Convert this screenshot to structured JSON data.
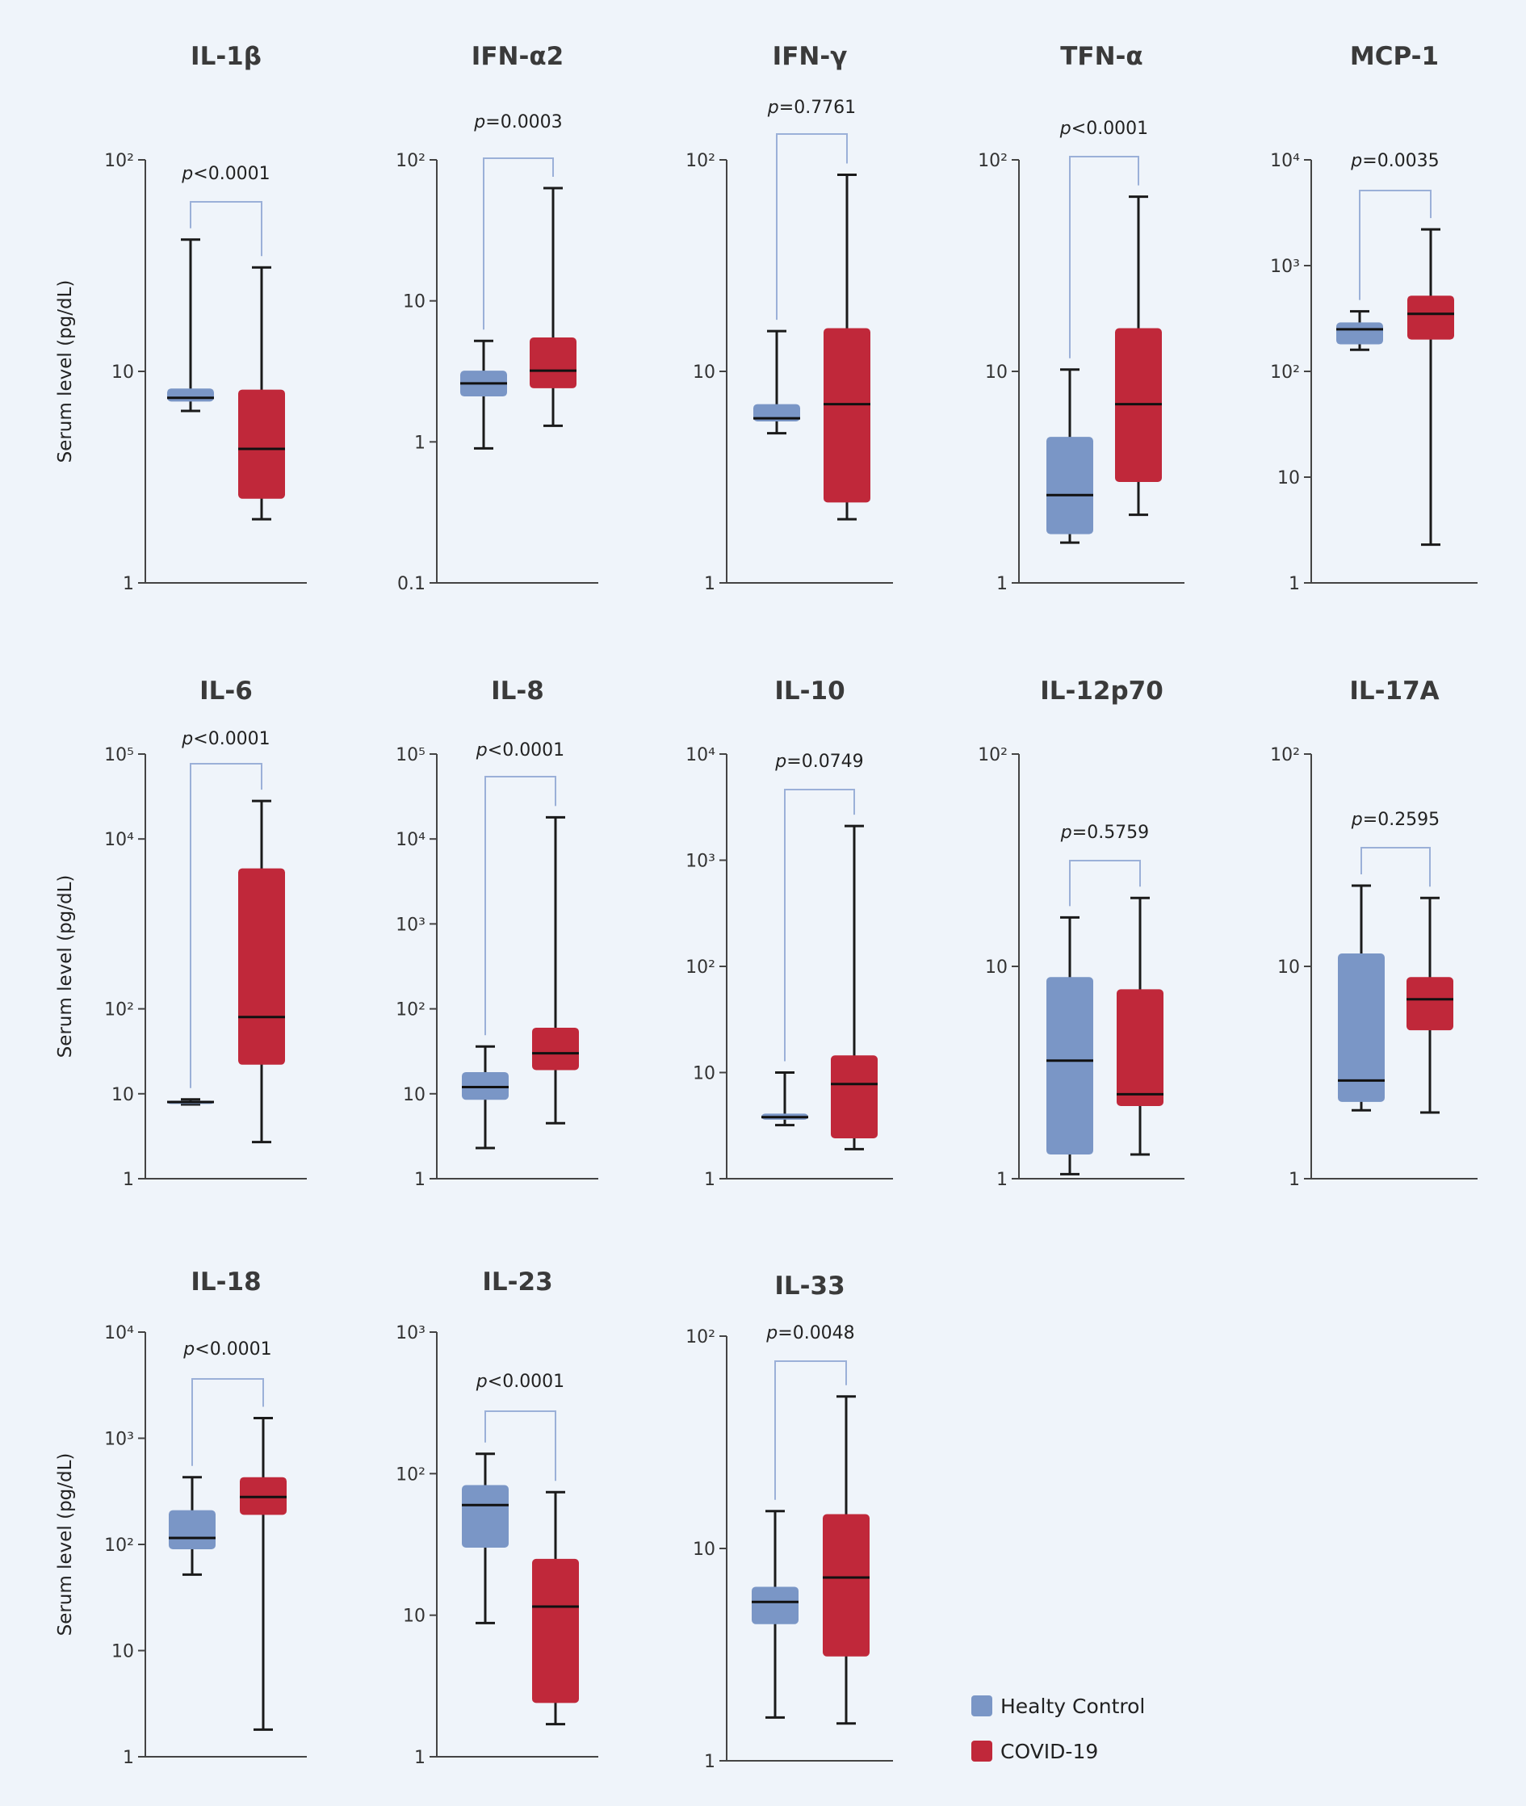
{
  "legend": [
    {
      "label": "Healty Control",
      "color": "#7a96c6"
    },
    {
      "label": "COVID-19",
      "color": "#c0283a"
    }
  ],
  "y_axis_label": "Serum level (pg/dL)",
  "chart_data": [
    {
      "type": "box",
      "title": "IL-1β",
      "ylim": [
        1,
        100
      ],
      "yscale": "log",
      "ticks": [
        {
          "v": 1,
          "label": "1"
        },
        {
          "v": 10,
          "label": "10"
        },
        {
          "v": 100,
          "label": "10²"
        }
      ],
      "p": "p<0.0001",
      "series": [
        {
          "name": "Healty Control",
          "min": 6.5,
          "q1": 7.2,
          "median": 7.5,
          "q3": 8.3,
          "max": 42
        },
        {
          "name": "COVID-19",
          "min": 2.0,
          "q1": 2.5,
          "median": 4.3,
          "q3": 8.2,
          "max": 31
        }
      ]
    },
    {
      "type": "box",
      "title": "IFN-α2",
      "ylim": [
        0.1,
        100
      ],
      "yscale": "log",
      "ticks": [
        {
          "v": 0.1,
          "label": "0.1"
        },
        {
          "v": 1,
          "label": "1"
        },
        {
          "v": 10,
          "label": "10"
        },
        {
          "v": 100,
          "label": "10²"
        }
      ],
      "p": "p=0.0003",
      "series": [
        {
          "name": "Healty Control",
          "min": 0.9,
          "q1": 2.1,
          "median": 2.6,
          "q3": 3.2,
          "max": 5.2
        },
        {
          "name": "COVID-19",
          "min": 1.3,
          "q1": 2.4,
          "median": 3.2,
          "q3": 5.5,
          "max": 63
        }
      ]
    },
    {
      "type": "box",
      "title": "IFN-γ",
      "ylim": [
        1,
        100
      ],
      "yscale": "log",
      "ticks": [
        {
          "v": 1,
          "label": "1"
        },
        {
          "v": 10,
          "label": "10"
        },
        {
          "v": 100,
          "label": "10²"
        }
      ],
      "p": "p=0.7761",
      "series": [
        {
          "name": "Healty Control",
          "min": 5.1,
          "q1": 5.8,
          "median": 6.0,
          "q3": 7.0,
          "max": 15.5
        },
        {
          "name": "COVID-19",
          "min": 2.0,
          "q1": 2.4,
          "median": 7.0,
          "q3": 16,
          "max": 85
        }
      ]
    },
    {
      "type": "box",
      "title": "TFN-α",
      "ylim": [
        1,
        100
      ],
      "yscale": "log",
      "ticks": [
        {
          "v": 1,
          "label": "1"
        },
        {
          "v": 10,
          "label": "10"
        },
        {
          "v": 100,
          "label": "10²"
        }
      ],
      "p": "p<0.0001",
      "series": [
        {
          "name": "Healty Control",
          "min": 1.55,
          "q1": 1.7,
          "median": 2.6,
          "q3": 4.9,
          "max": 10.2
        },
        {
          "name": "COVID-19",
          "min": 2.1,
          "q1": 3.0,
          "median": 7.0,
          "q3": 16,
          "max": 67
        }
      ]
    },
    {
      "type": "box",
      "title": "MCP-1",
      "ylim": [
        1,
        10000
      ],
      "yscale": "log",
      "ticks": [
        {
          "v": 1,
          "label": "1"
        },
        {
          "v": 10,
          "label": "10"
        },
        {
          "v": 100,
          "label": "10²"
        },
        {
          "v": 1000,
          "label": "10³"
        },
        {
          "v": 10000,
          "label": "10⁴"
        }
      ],
      "p": "p=0.0035",
      "series": [
        {
          "name": "Healty Control",
          "min": 160,
          "q1": 180,
          "median": 250,
          "q3": 290,
          "max": 370
        },
        {
          "name": "COVID-19",
          "min": 2.3,
          "q1": 200,
          "median": 350,
          "q3": 520,
          "max": 2200
        }
      ]
    },
    {
      "type": "box",
      "title": "IL-6",
      "ylim": [
        1,
        100000
      ],
      "yscale": "log",
      "ticks": [
        {
          "v": 1,
          "label": "1"
        },
        {
          "v": 10,
          "label": "10"
        },
        {
          "v": 100,
          "label": "10²"
        },
        {
          "v": 10000,
          "label": "10⁴"
        },
        {
          "v": 100000,
          "label": "10⁵"
        }
      ],
      "p": "p<0.0001",
      "series": [
        {
          "name": "Healty Control",
          "min": 7.5,
          "q1": 7.8,
          "median": 8.0,
          "q3": 8.3,
          "max": 8.6
        },
        {
          "name": "COVID-19",
          "min": 2.7,
          "q1": 22,
          "median": 80,
          "q3": 4500,
          "max": 28000
        }
      ]
    },
    {
      "type": "box",
      "title": "IL-8",
      "ylim": [
        1,
        100000
      ],
      "yscale": "log",
      "ticks": [
        {
          "v": 1,
          "label": "1"
        },
        {
          "v": 10,
          "label": "10"
        },
        {
          "v": 100,
          "label": "10²"
        },
        {
          "v": 1000,
          "label": "10³"
        },
        {
          "v": 10000,
          "label": "10⁴"
        },
        {
          "v": 100000,
          "label": "10⁵"
        }
      ],
      "p": "p<0.0001",
      "series": [
        {
          "name": "Healty Control",
          "min": 2.3,
          "q1": 8.5,
          "median": 12,
          "q3": 18,
          "max": 36
        },
        {
          "name": "COVID-19",
          "min": 4.5,
          "q1": 19,
          "median": 30,
          "q3": 60,
          "max": 18000
        }
      ]
    },
    {
      "type": "box",
      "title": "IL-10",
      "ylim": [
        1,
        10000
      ],
      "yscale": "log",
      "ticks": [
        {
          "v": 1,
          "label": "1"
        },
        {
          "v": 10,
          "label": "10"
        },
        {
          "v": 100,
          "label": "10²"
        },
        {
          "v": 1000,
          "label": "10³"
        },
        {
          "v": 10000,
          "label": "10⁴"
        }
      ],
      "p": "p=0.0749",
      "series": [
        {
          "name": "Healty Control",
          "min": 3.2,
          "q1": 3.6,
          "median": 3.8,
          "q3": 4.1,
          "max": 10
        },
        {
          "name": "COVID-19",
          "min": 1.9,
          "q1": 2.4,
          "median": 7.8,
          "q3": 14.5,
          "max": 2100
        }
      ]
    },
    {
      "type": "box",
      "title": "IL-12p70",
      "ylim": [
        1,
        100
      ],
      "yscale": "log",
      "ticks": [
        {
          "v": 1,
          "label": "1"
        },
        {
          "v": 10,
          "label": "10"
        },
        {
          "v": 100,
          "label": "10²"
        }
      ],
      "p": "p=0.5759",
      "series": [
        {
          "name": "Healty Control",
          "min": 1.05,
          "q1": 1.3,
          "median": 3.6,
          "q3": 8.9,
          "max": 17
        },
        {
          "name": "COVID-19",
          "min": 1.3,
          "q1": 2.2,
          "median": 2.5,
          "q3": 7.8,
          "max": 21
        }
      ]
    },
    {
      "type": "box",
      "title": "IL-17A",
      "ylim": [
        1,
        100
      ],
      "yscale": "log",
      "ticks": [
        {
          "v": 1,
          "label": "1"
        },
        {
          "v": 10,
          "label": "10"
        },
        {
          "v": 100,
          "label": "10²"
        }
      ],
      "p": "p=0.2595",
      "series": [
        {
          "name": "Healty Control",
          "min": 2.1,
          "q1": 2.3,
          "median": 2.9,
          "q3": 11.5,
          "max": 24
        },
        {
          "name": "COVID-19",
          "min": 2.05,
          "q1": 5.0,
          "median": 7.0,
          "q3": 8.9,
          "max": 21
        }
      ]
    },
    {
      "type": "box",
      "title": "IL-18",
      "ylim": [
        1,
        10000
      ],
      "yscale": "log",
      "ticks": [
        {
          "v": 1,
          "label": "1"
        },
        {
          "v": 10,
          "label": "10"
        },
        {
          "v": 100,
          "label": "10²"
        },
        {
          "v": 1000,
          "label": "10³"
        },
        {
          "v": 10000,
          "label": "10⁴"
        }
      ],
      "p": "p<0.0001",
      "series": [
        {
          "name": "Healty Control",
          "min": 52,
          "q1": 90,
          "median": 115,
          "q3": 210,
          "max": 430
        },
        {
          "name": "COVID-19",
          "min": 1.8,
          "q1": 190,
          "median": 280,
          "q3": 430,
          "max": 1550
        }
      ]
    },
    {
      "type": "box",
      "title": "IL-23",
      "ylim": [
        1,
        1000
      ],
      "yscale": "log",
      "ticks": [
        {
          "v": 1,
          "label": "1"
        },
        {
          "v": 10,
          "label": "10"
        },
        {
          "v": 100,
          "label": "10²"
        },
        {
          "v": 1000,
          "label": "10³"
        }
      ],
      "p": "p<0.0001",
      "series": [
        {
          "name": "Healty Control",
          "min": 8.8,
          "q1": 30,
          "median": 60,
          "q3": 83,
          "max": 138
        },
        {
          "name": "COVID-19",
          "min": 1.7,
          "q1": 2.4,
          "median": 11.5,
          "q3": 25,
          "max": 74
        }
      ]
    },
    {
      "type": "box",
      "title": "IL-33",
      "ylim": [
        1,
        100
      ],
      "yscale": "log",
      "ticks": [
        {
          "v": 1,
          "label": "1"
        },
        {
          "v": 10,
          "label": "10"
        },
        {
          "v": 100,
          "label": "10²"
        }
      ],
      "p": "p=0.0048",
      "series": [
        {
          "name": "Healty Control",
          "min": 1.6,
          "q1": 4.4,
          "median": 5.6,
          "q3": 6.6,
          "max": 15
        },
        {
          "name": "COVID-19",
          "min": 1.5,
          "q1": 3.1,
          "median": 7.3,
          "q3": 14.5,
          "max": 52
        }
      ]
    }
  ]
}
